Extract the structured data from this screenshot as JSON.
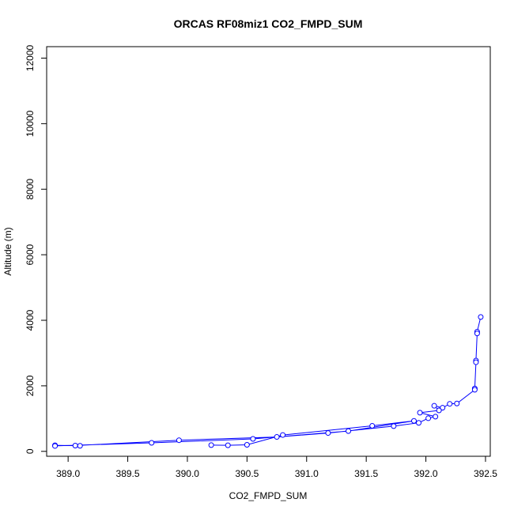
{
  "chart_data": {
    "type": "scatter",
    "title": "ORCAS RF08miz1 CO2_FMPD_SUM",
    "xlabel": "CO2_FMPD_SUM",
    "ylabel": "Altitude (m)",
    "xlim": [
      388.82,
      392.54
    ],
    "ylim": [
      -150,
      12350
    ],
    "xticks": [
      "389.0",
      "389.5",
      "390.0",
      "390.5",
      "391.0",
      "391.5",
      "392.0",
      "392.5"
    ],
    "xtick_values": [
      389.0,
      389.5,
      390.0,
      390.5,
      391.0,
      391.5,
      392.0,
      392.5
    ],
    "yticks": [
      "0",
      "2000",
      "4000",
      "6000",
      "8000",
      "10000",
      "12000"
    ],
    "ytick_values": [
      0,
      2000,
      4000,
      6000,
      8000,
      10000,
      12000
    ],
    "series_color": "#0000ff",
    "connect_points": true,
    "grid": false,
    "points": [
      {
        "x": 392.46,
        "y": 4100
      },
      {
        "x": 392.43,
        "y": 3650
      },
      {
        "x": 392.43,
        "y": 3600
      },
      {
        "x": 392.42,
        "y": 2770
      },
      {
        "x": 392.42,
        "y": 2720
      },
      {
        "x": 392.41,
        "y": 1920
      },
      {
        "x": 392.41,
        "y": 1880
      },
      {
        "x": 392.26,
        "y": 1460
      },
      {
        "x": 392.2,
        "y": 1450
      },
      {
        "x": 392.14,
        "y": 1330
      },
      {
        "x": 392.07,
        "y": 1390
      },
      {
        "x": 392.11,
        "y": 1250
      },
      {
        "x": 391.95,
        "y": 1180
      },
      {
        "x": 392.08,
        "y": 1060
      },
      {
        "x": 392.02,
        "y": 1010
      },
      {
        "x": 391.94,
        "y": 870
      },
      {
        "x": 391.73,
        "y": 770
      },
      {
        "x": 391.18,
        "y": 560
      },
      {
        "x": 390.75,
        "y": 440
      },
      {
        "x": 389.93,
        "y": 340
      },
      {
        "x": 389.06,
        "y": 175
      },
      {
        "x": 389.1,
        "y": 170
      },
      {
        "x": 388.89,
        "y": 185
      },
      {
        "x": 388.89,
        "y": 165
      },
      {
        "x": 389.7,
        "y": 260
      },
      {
        "x": 390.55,
        "y": 380
      },
      {
        "x": 391.35,
        "y": 620
      },
      {
        "x": 391.9,
        "y": 930
      },
      {
        "x": 391.55,
        "y": 780
      },
      {
        "x": 390.8,
        "y": 500
      },
      {
        "x": 390.5,
        "y": 200
      },
      {
        "x": 390.34,
        "y": 185
      },
      {
        "x": 390.2,
        "y": 190
      }
    ]
  }
}
